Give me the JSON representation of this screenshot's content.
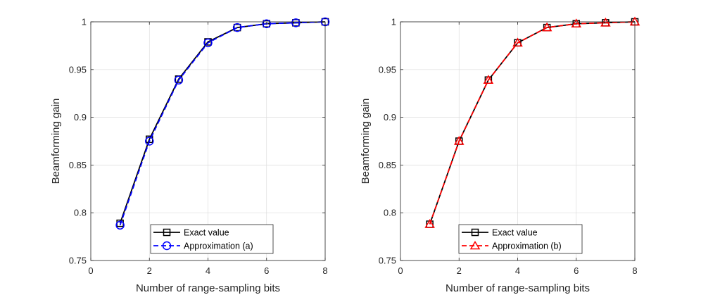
{
  "chart_data": [
    {
      "type": "line",
      "title": "",
      "xlabel": "Number of range-sampling bits",
      "ylabel": "Beamforming gain",
      "xlim": [
        0,
        8
      ],
      "ylim": [
        0.75,
        1
      ],
      "xticks": [
        "0",
        "2",
        "4",
        "6",
        "8"
      ],
      "yticks": [
        "0.75",
        "0.8",
        "0.85",
        "0.9",
        "0.95",
        "1"
      ],
      "grid": true,
      "legend_position": "bottom-right",
      "x": [
        1,
        2,
        3,
        4,
        5,
        6,
        7,
        8
      ],
      "series": [
        {
          "name": "Exact value",
          "color": "#000000",
          "marker": "square",
          "dash": "solid",
          "values": [
            0.789,
            0.877,
            0.94,
            0.979,
            0.994,
            0.998,
            0.999,
            1.0
          ]
        },
        {
          "name": "Approximation (a)",
          "color": "#0000ff",
          "marker": "circle",
          "dash": "dashed",
          "values": [
            0.787,
            0.875,
            0.939,
            0.978,
            0.994,
            0.998,
            0.999,
            1.0
          ]
        }
      ]
    },
    {
      "type": "line",
      "title": "",
      "xlabel": "Number of range-sampling bits",
      "ylabel": "Beamforming gain",
      "xlim": [
        0,
        8
      ],
      "ylim": [
        0.75,
        1
      ],
      "xticks": [
        "0",
        "2",
        "4",
        "6",
        "8"
      ],
      "yticks": [
        "0.75",
        "0.8",
        "0.85",
        "0.9",
        "0.95",
        "1"
      ],
      "grid": true,
      "legend_position": "bottom-right",
      "x": [
        1,
        2,
        3,
        4,
        5,
        6,
        7,
        8
      ],
      "series": [
        {
          "name": "Exact value",
          "color": "#000000",
          "marker": "square",
          "dash": "solid",
          "values": [
            0.788,
            0.875,
            0.939,
            0.978,
            0.994,
            0.998,
            0.999,
            1.0
          ]
        },
        {
          "name": "Approximation (b)",
          "color": "#ff0000",
          "marker": "triangle",
          "dash": "dashed",
          "values": [
            0.788,
            0.875,
            0.939,
            0.978,
            0.994,
            0.998,
            0.999,
            1.0
          ]
        }
      ]
    }
  ]
}
